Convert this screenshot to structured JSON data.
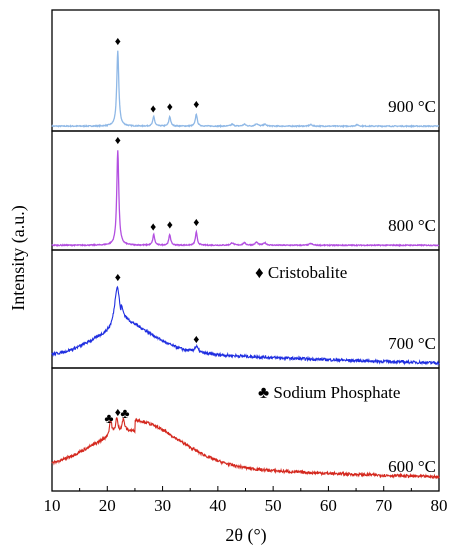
{
  "chart_data": {
    "type": "line",
    "title": "",
    "xlabel": "2θ (°)",
    "ylabel": "Intensity (a.u.)",
    "xlim": [
      10,
      80
    ],
    "x_ticks": [
      "10",
      "20",
      "30",
      "40",
      "50",
      "60",
      "70",
      "80"
    ],
    "grid": false,
    "legend": [
      {
        "symbol": "♦",
        "label": "Cristobalite",
        "panel": "700 °C"
      },
      {
        "symbol": "♣",
        "label": "Sodium Phosphate",
        "panel": "600 °C"
      }
    ],
    "series": [
      {
        "name": "900 °C",
        "color": "#8fb8e6",
        "baseline": 0.04,
        "broad_hump": null,
        "peaks": [
          {
            "x": 21.9,
            "height": 0.62,
            "width": 0.22
          },
          {
            "x": 28.4,
            "height": 0.08,
            "width": 0.2
          },
          {
            "x": 31.3,
            "height": 0.08,
            "width": 0.2
          },
          {
            "x": 36.1,
            "height": 0.1,
            "width": 0.2
          },
          {
            "x": 42.6,
            "height": 0.015,
            "width": 0.3
          },
          {
            "x": 44.8,
            "height": 0.015,
            "width": 0.3
          },
          {
            "x": 47.0,
            "height": 0.02,
            "width": 0.3
          },
          {
            "x": 48.5,
            "height": 0.015,
            "width": 0.3
          },
          {
            "x": 56.8,
            "height": 0.012,
            "width": 0.3
          },
          {
            "x": 65.2,
            "height": 0.012,
            "width": 0.3
          }
        ],
        "markers": [
          {
            "x": 21.9,
            "symbol": "♦"
          },
          {
            "x": 28.3,
            "symbol": "♦"
          },
          {
            "x": 31.3,
            "symbol": "♦"
          },
          {
            "x": 36.1,
            "symbol": "♦"
          }
        ]
      },
      {
        "name": "800 °C",
        "color": "#b34fe0",
        "baseline": 0.04,
        "broad_hump": null,
        "peaks": [
          {
            "x": 21.9,
            "height": 0.8,
            "width": 0.22
          },
          {
            "x": 28.4,
            "height": 0.09,
            "width": 0.2
          },
          {
            "x": 31.3,
            "height": 0.09,
            "width": 0.2
          },
          {
            "x": 36.1,
            "height": 0.11,
            "width": 0.2
          },
          {
            "x": 42.6,
            "height": 0.02,
            "width": 0.3
          },
          {
            "x": 44.8,
            "height": 0.02,
            "width": 0.3
          },
          {
            "x": 47.0,
            "height": 0.025,
            "width": 0.3
          },
          {
            "x": 48.5,
            "height": 0.02,
            "width": 0.3
          },
          {
            "x": 56.8,
            "height": 0.015,
            "width": 0.3
          }
        ],
        "markers": [
          {
            "x": 21.9,
            "symbol": "♦"
          },
          {
            "x": 28.3,
            "symbol": "♦"
          },
          {
            "x": 31.3,
            "symbol": "♦"
          },
          {
            "x": 36.1,
            "symbol": "♦"
          }
        ]
      },
      {
        "name": "700 °C",
        "color": "#1f2ee0",
        "baseline": 0.1,
        "broad_hump": {
          "center": 22.5,
          "height": 0.22,
          "width": 5.5,
          "tail": 0.14
        },
        "peaks": [
          {
            "x": 21.8,
            "height": 0.38,
            "width": 0.6
          },
          {
            "x": 36.1,
            "height": 0.05,
            "width": 0.4
          }
        ],
        "markers": [
          {
            "x": 21.9,
            "symbol": "♦"
          },
          {
            "x": 36.1,
            "symbol": "♦"
          }
        ]
      },
      {
        "name": "600 °C",
        "color": "#d4281e",
        "baseline": 0.17,
        "broad_hump": {
          "center": 25.0,
          "height": 0.33,
          "width": 8.0,
          "tail": 0.15
        },
        "peaks": [
          {
            "x": 20.6,
            "height": 0.13,
            "width": 0.25
          },
          {
            "x": 21.7,
            "height": 0.12,
            "width": 0.25
          },
          {
            "x": 22.9,
            "height": 0.1,
            "width": 0.3
          }
        ],
        "markers": [
          {
            "x": 20.3,
            "symbol": "♣"
          },
          {
            "x": 21.9,
            "symbol": "♦"
          },
          {
            "x": 23.2,
            "symbol": "♣"
          }
        ]
      }
    ]
  }
}
